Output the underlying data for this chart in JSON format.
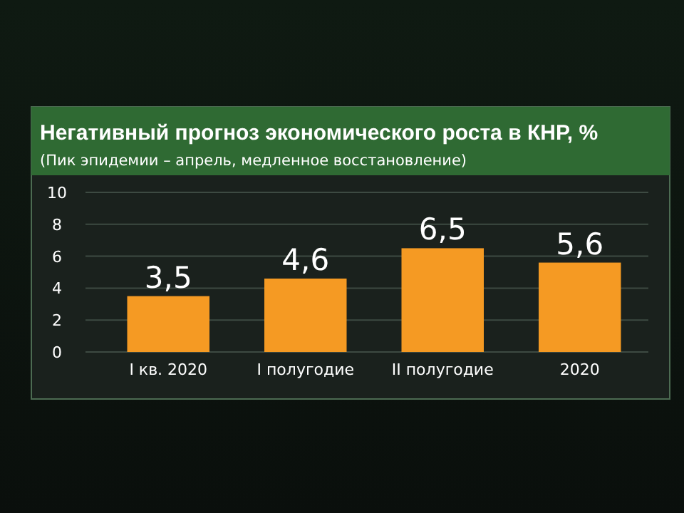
{
  "chart_data": {
    "type": "bar",
    "title": "Негативный прогноз экономического роста в КНР, %",
    "subtitle": "(Пик эпидемии – апрель, медленное восстановление)",
    "categories": [
      "I кв. 2020",
      "I полугодие",
      "II полугодие",
      "2020"
    ],
    "values": [
      3.5,
      4.6,
      6.5,
      5.6
    ],
    "value_labels": [
      "3,5",
      "4,6",
      "6,5",
      "5,6"
    ],
    "color": "#f59a23",
    "ylim": [
      0,
      10
    ],
    "yticks": [
      0,
      2,
      4,
      6,
      8,
      10
    ],
    "grid": "y"
  }
}
